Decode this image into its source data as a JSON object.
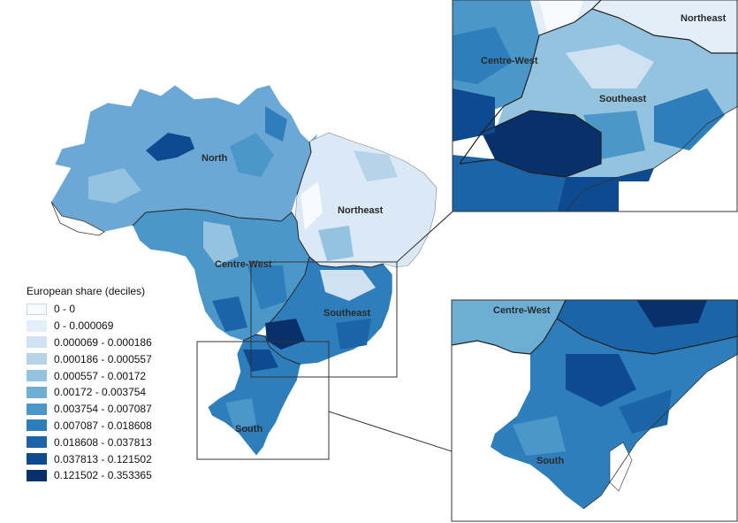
{
  "legend": {
    "title": "European share (deciles)",
    "classes": [
      {
        "label": "0 - 0",
        "color": "#f7fbff"
      },
      {
        "label": "0 - 0.000069",
        "color": "#e3eef9"
      },
      {
        "label": "0.000069 - 0.000186",
        "color": "#cfe1f2"
      },
      {
        "label": "0.000186 - 0.000557",
        "color": "#b5d4e9"
      },
      {
        "label": "0.000557 - 0.00172",
        "color": "#93c3df"
      },
      {
        "label": "0.00172 - 0.003754",
        "color": "#6daed5"
      },
      {
        "label": "0.003754 - 0.007087",
        "color": "#4b97c9"
      },
      {
        "label": "0.007087 - 0.018608",
        "color": "#2f7ebc"
      },
      {
        "label": "0.018608 - 0.037813",
        "color": "#1b64a7"
      },
      {
        "label": "0.037813 - 0.121502",
        "color": "#0d4a8f"
      },
      {
        "label": "0.121502 - 0.353365",
        "color": "#08306b"
      }
    ]
  },
  "main_map": {
    "regions": {
      "north": "North",
      "northeast": "Northeast",
      "centre_west": "Centre-West",
      "southeast": "Southeast",
      "south": "South"
    }
  },
  "inset_top": {
    "labels": {
      "northeast": "Northeast",
      "centre_west": "Centre-West",
      "southeast": "Southeast"
    }
  },
  "inset_bottom": {
    "labels": {
      "centre_west": "Centre-West",
      "south": "South"
    }
  }
}
